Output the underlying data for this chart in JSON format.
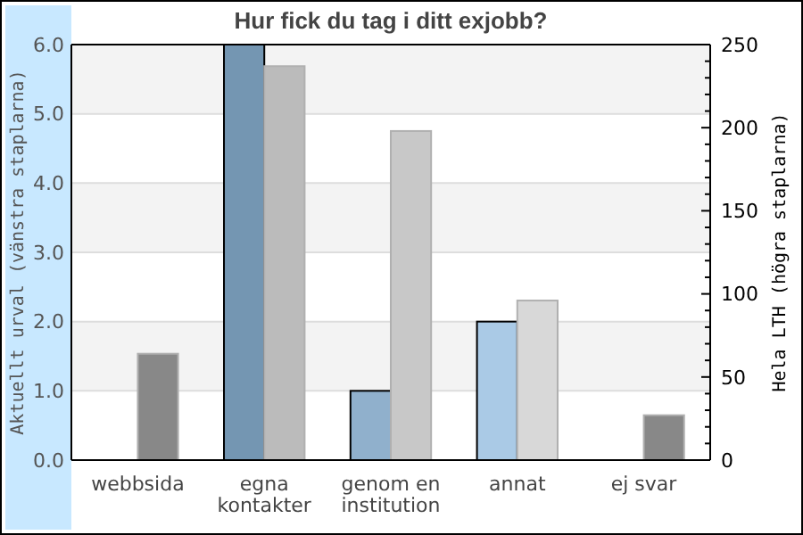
{
  "chart_data": {
    "type": "bar",
    "title": "Hur fick du tag i ditt exjobb?",
    "ylabel": "Aktuellt urval (vänstra staplarna)",
    "y2label": "Hela LTH (högra staplarna)",
    "categories": [
      "webbsida",
      "egna kontakter",
      "genom en institution",
      "annat",
      "ej svar"
    ],
    "series": [
      {
        "colors": [
          "#7496b2",
          "#7496b2",
          "#90b0cc",
          "#aacae6",
          "#7496b2"
        ],
        "values": [
          0,
          6,
          1,
          2,
          0
        ]
      },
      {
        "axis": "y2",
        "colors": [
          "#888888",
          "#bbbbbb",
          "#c8c8c8",
          "#d8d8d8",
          "#888888"
        ],
        "values": [
          64,
          237,
          198,
          96,
          27
        ]
      }
    ],
    "ylim": [
      0,
      6
    ],
    "yticks": [
      {
        "value": 0,
        "label": "0.0"
      },
      {
        "value": 1,
        "label": "1.0"
      },
      {
        "value": 2,
        "label": "2.0"
      },
      {
        "value": 3,
        "label": "3.0"
      },
      {
        "value": 4,
        "label": "4.0"
      },
      {
        "value": 5,
        "label": "5.0"
      },
      {
        "value": 6,
        "label": "6.0"
      }
    ],
    "y2lim": [
      0,
      250
    ],
    "y2ticks": [
      0,
      {
        "value": 10,
        "label": null
      },
      {
        "value": 20,
        "label": null
      },
      {
        "value": 30,
        "label": null
      },
      {
        "value": 40,
        "label": null
      },
      50,
      {
        "value": 60,
        "label": null
      },
      {
        "value": 70,
        "label": null
      },
      {
        "value": 80,
        "label": null
      },
      {
        "value": 90,
        "label": null
      },
      100,
      {
        "value": 110,
        "label": null
      },
      {
        "value": 120,
        "label": null
      },
      {
        "value": 130,
        "label": null
      },
      {
        "value": 140,
        "label": null
      },
      150,
      {
        "value": 160,
        "label": null
      },
      {
        "value": 170,
        "label": null
      },
      {
        "value": 180,
        "label": null
      },
      {
        "value": 190,
        "label": null
      },
      200,
      {
        "value": 210,
        "label": null
      },
      {
        "value": 220,
        "label": null
      },
      {
        "value": 230,
        "label": null
      },
      {
        "value": 240,
        "label": null
      },
      250
    ],
    "grid": "y"
  }
}
